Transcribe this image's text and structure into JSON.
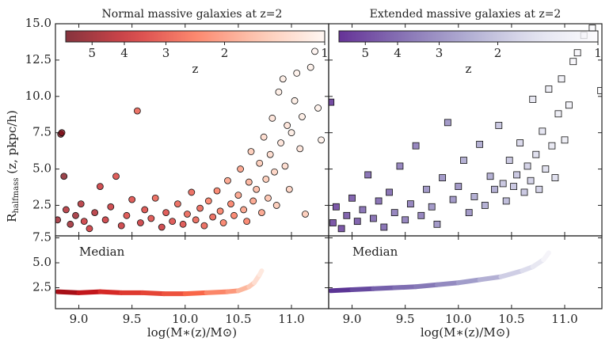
{
  "chart_data": [
    {
      "type": "scatter",
      "title": "Normal massive galaxies at z=2",
      "marker": "circle",
      "ylabel": {
        "main": "R",
        "sub": "halfmass",
        "rest": " (z, pkpc/h)"
      },
      "xlim": [
        8.78,
        11.35
      ],
      "ylim": [
        0.4,
        15
      ],
      "yticks": [
        2.5,
        {
          "value": 5,
          "label": "5.0"
        },
        7.5,
        {
          "value": 10,
          "label": "10.0"
        },
        12.5,
        {
          "value": 15,
          "label": "15.0"
        }
      ],
      "colorbar": {
        "label": "z",
        "lim": [
          6,
          1
        ],
        "scale": "log",
        "ticks": [
          5,
          4,
          3,
          2,
          1
        ]
      },
      "cmap": [
        "#fff5f0",
        "#fcbba1",
        "#fb6a4a",
        "#cb181d",
        "#67000d"
      ],
      "x": [
        8.8,
        8.83,
        8.84,
        8.86,
        8.88,
        8.92,
        8.97,
        9.02,
        9.05,
        9.1,
        9.15,
        9.2,
        9.25,
        9.3,
        9.35,
        9.4,
        9.45,
        9.5,
        9.55,
        9.58,
        9.62,
        9.68,
        9.72,
        9.78,
        9.82,
        9.88,
        9.93,
        9.98,
        10.02,
        10.06,
        10.1,
        10.14,
        10.18,
        10.22,
        10.26,
        10.3,
        10.33,
        10.36,
        10.4,
        10.43,
        10.46,
        10.5,
        10.52,
        10.55,
        10.58,
        10.6,
        10.62,
        10.64,
        10.67,
        10.7,
        10.72,
        10.74,
        10.76,
        10.78,
        10.8,
        10.82,
        10.84,
        10.86,
        10.88,
        10.9,
        10.92,
        10.94,
        10.96,
        10.98,
        11.0,
        11.03,
        11.05,
        11.08,
        11.1,
        11.13,
        11.18,
        11.22,
        11.25,
        11.28
      ],
      "values": [
        1.5,
        7.4,
        7.5,
        4.5,
        2.2,
        1.2,
        1.8,
        2.6,
        1.4,
        0.9,
        2.0,
        3.8,
        1.5,
        2.4,
        4.5,
        1.1,
        1.8,
        2.9,
        9.0,
        1.3,
        2.2,
        1.6,
        3.0,
        1.0,
        2.0,
        1.4,
        2.6,
        1.2,
        1.9,
        3.4,
        1.5,
        2.3,
        1.1,
        2.8,
        1.7,
        3.5,
        2.1,
        1.3,
        4.2,
        2.6,
        1.8,
        3.2,
        5.0,
        2.2,
        1.4,
        4.1,
        6.2,
        2.8,
        3.6,
        5.4,
        2.0,
        7.2,
        4.3,
        3.0,
        6.0,
        8.5,
        4.8,
        2.5,
        10.3,
        6.8,
        11.2,
        5.2,
        8.0,
        3.6,
        7.5,
        9.7,
        11.6,
        6.4,
        8.6,
        1.9,
        12.0,
        13.1,
        9.2,
        7.0
      ],
      "z": [
        5,
        5.5,
        5.5,
        5.5,
        4.5,
        5,
        5,
        4.5,
        4,
        4,
        4.5,
        4,
        4,
        4,
        3.5,
        4,
        3.5,
        3.5,
        3,
        4,
        3.5,
        3.5,
        3,
        4,
        3.5,
        3.5,
        3,
        3.5,
        3,
        3,
        3,
        3,
        3,
        2.5,
        3,
        2.5,
        2.5,
        2.5,
        2,
        2.5,
        2.5,
        2,
        2,
        2,
        2.5,
        1.8,
        1.5,
        2,
        1.7,
        1.5,
        2,
        1.3,
        1.5,
        1.6,
        1.3,
        1.2,
        1.4,
        1.5,
        1.1,
        1.2,
        1.1,
        1.3,
        1.2,
        1.4,
        1.1,
        1.1,
        1.05,
        1.2,
        1.1,
        1.5,
        1.05,
        1.02,
        1.05,
        1.05
      ]
    },
    {
      "type": "scatter",
      "title": "Extended massive galaxies at z=2",
      "marker": "square",
      "xlim": [
        8.78,
        11.35
      ],
      "ylim": [
        0.4,
        15
      ],
      "colorbar": {
        "label": "z",
        "lim": [
          6,
          1
        ],
        "scale": "log",
        "ticks": [
          5,
          4,
          3,
          2,
          1
        ]
      },
      "cmap": [
        "#fcfbfd",
        "#dadaeb",
        "#9e9ac8",
        "#6a51a3",
        "#3f007d"
      ],
      "x": [
        8.8,
        8.82,
        8.85,
        8.9,
        8.95,
        9.0,
        9.05,
        9.1,
        9.15,
        9.2,
        9.25,
        9.3,
        9.35,
        9.4,
        9.45,
        9.5,
        9.55,
        9.6,
        9.65,
        9.7,
        9.75,
        9.8,
        9.85,
        9.9,
        9.95,
        10.0,
        10.05,
        10.1,
        10.15,
        10.2,
        10.25,
        10.3,
        10.34,
        10.38,
        10.42,
        10.45,
        10.48,
        10.52,
        10.55,
        10.58,
        10.62,
        10.65,
        10.68,
        10.7,
        10.73,
        10.76,
        10.79,
        10.82,
        10.85,
        10.88,
        10.91,
        10.94,
        10.97,
        11.0,
        11.04,
        11.08,
        11.12,
        11.18,
        11.26,
        11.34
      ],
      "values": [
        9.6,
        1.3,
        2.4,
        0.9,
        1.8,
        3.0,
        1.4,
        2.2,
        4.6,
        1.6,
        2.8,
        1.0,
        3.4,
        2.0,
        5.2,
        1.5,
        2.6,
        6.6,
        1.8,
        3.6,
        2.4,
        1.2,
        4.4,
        8.2,
        2.9,
        3.8,
        5.6,
        2.0,
        3.1,
        6.7,
        2.5,
        4.5,
        3.6,
        8.0,
        4.0,
        2.8,
        5.6,
        3.8,
        4.6,
        6.8,
        3.4,
        5.2,
        4.2,
        9.8,
        6.0,
        3.6,
        7.6,
        5.0,
        10.5,
        6.6,
        4.4,
        8.8,
        11.2,
        7.0,
        9.4,
        12.4,
        13.0,
        14.2,
        14.7,
        10.4
      ],
      "z": [
        5.5,
        5,
        5,
        5,
        4.5,
        4.5,
        4.5,
        4,
        4,
        4,
        4,
        4,
        4,
        3.5,
        3.5,
        3.5,
        3.5,
        3.5,
        3.5,
        3,
        3,
        3,
        3,
        3,
        3,
        3,
        2.5,
        3,
        2.5,
        2.5,
        2.5,
        2.5,
        2.5,
        2,
        2,
        2.2,
        2,
        2,
        2,
        1.7,
        2,
        1.8,
        1.8,
        1.4,
        1.6,
        1.8,
        1.5,
        1.6,
        1.3,
        1.4,
        1.6,
        1.3,
        1.2,
        1.3,
        1.2,
        1.1,
        1.1,
        1.05,
        1.02,
        1.02
      ]
    },
    {
      "type": "line",
      "annotation": "Median",
      "xlabel": "log(M∗(z)/M⊙)",
      "xlim": [
        8.78,
        11.35
      ],
      "ylim": [
        0.4,
        7.7
      ],
      "xticks": [
        {
          "value": 9,
          "label": "9.0"
        },
        9.5,
        {
          "value": 10,
          "label": "10.0"
        },
        10.5,
        {
          "value": 11,
          "label": "11.0"
        }
      ],
      "yticks": [
        2.5,
        {
          "value": 5,
          "label": "5.0"
        },
        7.5
      ],
      "cmap": [
        "#fff5f0",
        "#fcbba1",
        "#fb6a4a",
        "#cb181d",
        "#67000d"
      ],
      "zlim": [
        6,
        1
      ],
      "x": [
        8.8,
        9.0,
        9.2,
        9.4,
        9.6,
        9.8,
        10.0,
        10.2,
        10.4,
        10.5,
        10.6,
        10.65,
        10.7,
        10.72
      ],
      "values": [
        2.1,
        2.0,
        2.1,
        2.0,
        2.0,
        1.9,
        1.9,
        2.0,
        2.1,
        2.2,
        2.6,
        3.0,
        3.8,
        4.2
      ],
      "z": [
        5,
        4.5,
        4,
        3.5,
        3.2,
        3,
        2.8,
        2.5,
        2.1,
        1.9,
        1.6,
        1.4,
        1.2,
        1.1
      ]
    },
    {
      "type": "line",
      "annotation": "Median",
      "xlabel": "log(M∗(z)/M⊙)",
      "xlim": [
        8.78,
        11.35
      ],
      "ylim": [
        0.4,
        7.7
      ],
      "xticks": [
        {
          "value": 9,
          "label": "9.0"
        },
        9.5,
        {
          "value": 10,
          "label": "10.0"
        },
        10.5,
        {
          "value": 11,
          "label": "11.0"
        }
      ],
      "cmap": [
        "#fcfbfd",
        "#dadaeb",
        "#9e9ac8",
        "#6a51a3",
        "#3f007d"
      ],
      "zlim": [
        6,
        1
      ],
      "x": [
        8.8,
        9.0,
        9.2,
        9.4,
        9.6,
        9.8,
        10.0,
        10.2,
        10.4,
        10.6,
        10.7,
        10.8,
        10.85
      ],
      "values": [
        2.2,
        2.3,
        2.4,
        2.5,
        2.6,
        2.8,
        3.0,
        3.3,
        3.6,
        4.2,
        4.6,
        5.3,
        6.0
      ],
      "z": [
        5,
        4.5,
        4,
        3.5,
        3.2,
        3,
        2.7,
        2.4,
        2.1,
        1.7,
        1.5,
        1.3,
        1.1
      ]
    }
  ]
}
